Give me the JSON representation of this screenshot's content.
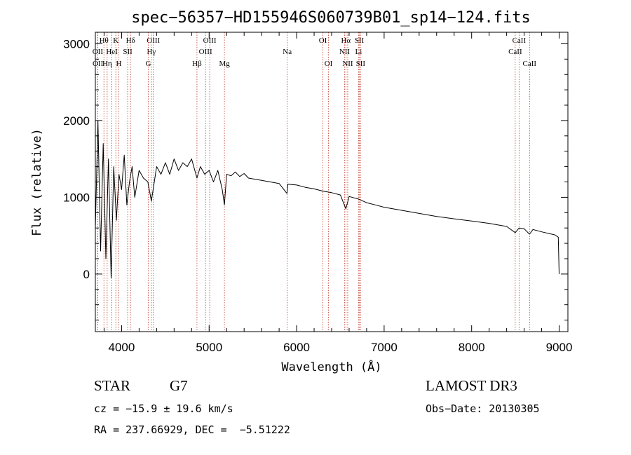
{
  "chart_data": {
    "type": "line",
    "title": "spec−56357−HD155946S060739B01_sp14−124.fits",
    "xlabel": "Wavelength (Å)",
    "ylabel": "Flux (relative)",
    "xlim": [
      3700,
      9100
    ],
    "ylim": [
      -750,
      3150
    ],
    "x_ticks": [
      4000,
      5000,
      6000,
      7000,
      8000,
      9000
    ],
    "y_ticks": [
      0,
      1000,
      2000,
      3000
    ],
    "grid": false,
    "series": [
      {
        "name": "flux",
        "x": [
          3700,
          3730,
          3760,
          3790,
          3820,
          3850,
          3880,
          3910,
          3940,
          3970,
          4000,
          4030,
          4060,
          4090,
          4120,
          4150,
          4200,
          4250,
          4300,
          4340,
          4400,
          4450,
          4500,
          4550,
          4600,
          4650,
          4700,
          4750,
          4800,
          4861,
          4900,
          4950,
          5000,
          5050,
          5100,
          5150,
          5175,
          5200,
          5250,
          5300,
          5350,
          5400,
          5450,
          5500,
          5600,
          5700,
          5800,
          5890,
          5900,
          6000,
          6100,
          6200,
          6300,
          6400,
          6500,
          6563,
          6600,
          6700,
          6800,
          6900,
          7000,
          7200,
          7400,
          7600,
          7800,
          8000,
          8200,
          8400,
          8498,
          8542,
          8600,
          8662,
          8700,
          8800,
          8950,
          8990,
          9000
        ],
        "y": [
          600,
          2000,
          300,
          1700,
          200,
          1500,
          -50,
          1400,
          700,
          1300,
          1100,
          1550,
          900,
          1200,
          1400,
          1000,
          1350,
          1250,
          1200,
          950,
          1400,
          1300,
          1450,
          1300,
          1500,
          1350,
          1450,
          1400,
          1500,
          1250,
          1400,
          1300,
          1350,
          1200,
          1350,
          1100,
          900,
          1300,
          1280,
          1330,
          1270,
          1310,
          1250,
          1240,
          1220,
          1200,
          1180,
          1050,
          1170,
          1160,
          1130,
          1110,
          1080,
          1060,
          1030,
          850,
          1010,
          980,
          930,
          900,
          870,
          830,
          790,
          750,
          720,
          690,
          660,
          620,
          540,
          600,
          590,
          520,
          580,
          550,
          510,
          480,
          0
        ]
      }
    ],
    "spectral_lines": [
      {
        "label": "Hθ",
        "x": 3798,
        "row": 1
      },
      {
        "label": "OII",
        "x": 3727,
        "row": 2
      },
      {
        "label": "OII",
        "x": 3729,
        "row": 3
      },
      {
        "label": "Hη",
        "x": 3835,
        "row": 3
      },
      {
        "label": "HeI",
        "x": 3889,
        "row": 2
      },
      {
        "label": "K",
        "x": 3934,
        "row": 1
      },
      {
        "label": "H",
        "x": 3968,
        "row": 3
      },
      {
        "label": "SII",
        "x": 4069,
        "row": 2
      },
      {
        "label": "Hδ",
        "x": 4102,
        "row": 1
      },
      {
        "label": "OIII",
        "x": 4363,
        "row": 1
      },
      {
        "label": "Hγ",
        "x": 4340,
        "row": 2
      },
      {
        "label": "G",
        "x": 4305,
        "row": 3
      },
      {
        "label": "Hβ",
        "x": 4861,
        "row": 3
      },
      {
        "label": "OIII",
        "x": 4959,
        "row": 2
      },
      {
        "label": "OIII",
        "x": 5007,
        "row": 1
      },
      {
        "label": "Mg",
        "x": 5175,
        "row": 3
      },
      {
        "label": "Na",
        "x": 5893,
        "row": 2
      },
      {
        "label": "OI",
        "x": 6300,
        "row": 1
      },
      {
        "label": "OI",
        "x": 6364,
        "row": 3
      },
      {
        "label": "Hα",
        "x": 6563,
        "row": 1
      },
      {
        "label": "NII",
        "x": 6548,
        "row": 2
      },
      {
        "label": "NII",
        "x": 6584,
        "row": 3
      },
      {
        "label": "SII",
        "x": 6717,
        "row": 1
      },
      {
        "label": "Li",
        "x": 6708,
        "row": 2
      },
      {
        "label": "SII",
        "x": 6731,
        "row": 3
      },
      {
        "label": "CaII",
        "x": 8542,
        "row": 1
      },
      {
        "label": "CaII",
        "x": 8498,
        "row": 2
      },
      {
        "label": "CaII",
        "x": 8662,
        "row": 3
      }
    ]
  },
  "info": {
    "object_class": "STAR",
    "subclass": "G7",
    "survey": "LAMOST DR3",
    "redshift": "cz = −15.9 ± 19.6 km/s",
    "obs_date": "Obs−Date: 20130305",
    "coords": "RA = 237.66929, DEC =  −5.51222"
  },
  "colors": {
    "line_marker": "#c0392b",
    "spectrum": "#000000",
    "axis": "#000000"
  }
}
